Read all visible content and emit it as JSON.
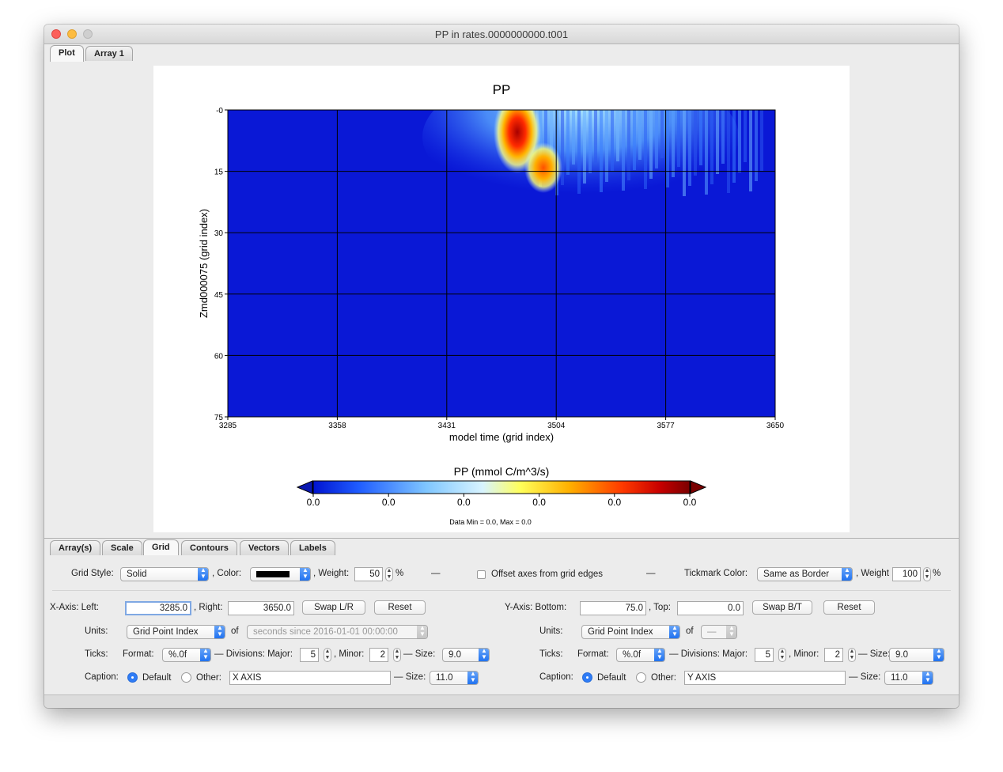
{
  "window": {
    "title": "PP in rates.0000000000.t001"
  },
  "top_tabs": [
    "Plot",
    "Array 1"
  ],
  "bottom_tabs": [
    "Array(s)",
    "Scale",
    "Grid",
    "Contours",
    "Vectors",
    "Labels"
  ],
  "chart_data": {
    "type": "heatmap",
    "title": "PP",
    "xlabel": "model time (grid index)",
    "ylabel": "Zmd000075 (grid index)",
    "xlim": [
      3285,
      3650
    ],
    "ylim": [
      75,
      0
    ],
    "x_ticks": [
      "3285",
      "3358",
      "3431",
      "3504",
      "3577",
      "3650"
    ],
    "y_ticks": [
      "-0",
      "15",
      "30",
      "45",
      "60",
      "75"
    ],
    "colorbar": {
      "label": "PP (mmol C/m^3/s)",
      "ticks": [
        "0.0",
        "0.0",
        "0.0",
        "0.0",
        "0.0",
        "0.0"
      ],
      "colors": [
        "#0013d0",
        "#1f5cff",
        "#7fc6ff",
        "#d8f4ff",
        "#ffff5a",
        "#ffb000",
        "#ff3a00",
        "#c80000",
        "#7a0000"
      ]
    },
    "data_min": "Data Min = 0.0, Max = 0.0",
    "grid": true
  },
  "grid_style": {
    "label": "Grid Style:",
    "value": "Solid",
    "color_label": ", Color:",
    "weight_label": ", Weight:",
    "weight_value": "50",
    "percent": "%",
    "dash": "—",
    "offset_label": "Offset axes from grid edges",
    "tick_color_label": "Tickmark Color:",
    "tick_color_value": "Same as Border",
    "tick_weight_label": ", Weight",
    "tick_weight_value": "100"
  },
  "x_axis": {
    "left_label": "X-Axis: Left:",
    "left": "3285.0",
    "right_label": ", Right:",
    "right": "3650.0",
    "swap": "Swap L/R",
    "reset": "Reset",
    "units_label": "Units:",
    "units": "Grid Point Index",
    "of": "of",
    "of_value": "seconds since 2016-01-01 00:00:00",
    "ticks_label": "Ticks:",
    "format_label": "Format:",
    "format": "%.0f",
    "divisions_label": "— Divisions: Major:",
    "major": "5",
    "minor_label": ", Minor:",
    "minor": "2",
    "size_label": "— Size:",
    "size": "9.0",
    "caption_label": "Caption:",
    "default": "Default",
    "other": "Other:",
    "caption": "X AXIS",
    "cap_size_label": "— Size:",
    "cap_size": "11.0"
  },
  "y_axis": {
    "bottom_label": "Y-Axis: Bottom:",
    "bottom": "75.0",
    "top_label": ", Top:",
    "top": "0.0",
    "swap": "Swap B/T",
    "reset": "Reset",
    "units_label": "Units:",
    "units": "Grid Point Index",
    "of": "of",
    "of_value": "—",
    "ticks_label": "Ticks:",
    "format_label": "Format:",
    "format": "%.0f",
    "divisions_label": "— Divisions: Major:",
    "major": "5",
    "minor_label": ", Minor:",
    "minor": "2",
    "size_label": "— Size:",
    "size": "9.0",
    "caption_label": "Caption:",
    "default": "Default",
    "other": "Other:",
    "caption": "Y AXIS",
    "cap_size_label": "— Size:",
    "cap_size": "11.0"
  }
}
